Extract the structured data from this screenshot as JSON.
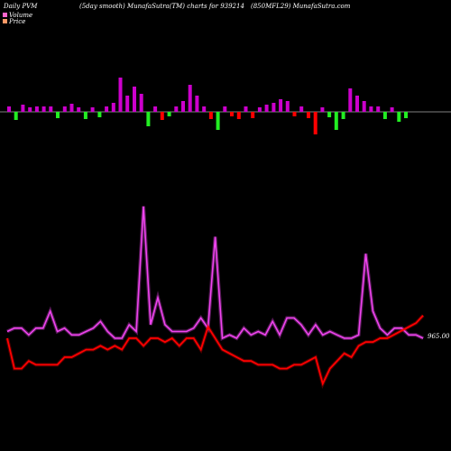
{
  "header": {
    "left": "Daily PVM",
    "middle": "(5day smooth) MunafaSutra(TM) charts for 939214",
    "right": "(850MFL29) MunafaSutra.com"
  },
  "legend": {
    "volume": {
      "label": "Volume",
      "color": "#ff66cc"
    },
    "price": {
      "label": "Price",
      "color": "#ff9966"
    }
  },
  "price_label": "965.00",
  "colors": {
    "background": "#000000",
    "bar_up": "#cc00cc",
    "bar_down_green": "#22ee22",
    "bar_down_red": "#ff0000",
    "volume_line": "#ee44ee",
    "price_line": "#ff0000",
    "baseline": "#aaaaaa"
  },
  "chart_data": {
    "type": "line",
    "sessions": 58,
    "volume_bars": [
      {
        "v": 6,
        "c": "up"
      },
      {
        "v": -9,
        "c": "green"
      },
      {
        "v": 8,
        "c": "up"
      },
      {
        "v": 5,
        "c": "up"
      },
      {
        "v": 6,
        "c": "up"
      },
      {
        "v": 6,
        "c": "up"
      },
      {
        "v": 6,
        "c": "up"
      },
      {
        "v": -7,
        "c": "green"
      },
      {
        "v": 6,
        "c": "up"
      },
      {
        "v": 9,
        "c": "up"
      },
      {
        "v": 5,
        "c": "up"
      },
      {
        "v": -8,
        "c": "green"
      },
      {
        "v": 5,
        "c": "up"
      },
      {
        "v": -6,
        "c": "green"
      },
      {
        "v": 6,
        "c": "up"
      },
      {
        "v": 10,
        "c": "up"
      },
      {
        "v": 38,
        "c": "up"
      },
      {
        "v": 18,
        "c": "up"
      },
      {
        "v": 28,
        "c": "up"
      },
      {
        "v": 20,
        "c": "up"
      },
      {
        "v": -16,
        "c": "green"
      },
      {
        "v": 6,
        "c": "up"
      },
      {
        "v": -9,
        "c": "red"
      },
      {
        "v": -5,
        "c": "green"
      },
      {
        "v": 6,
        "c": "up"
      },
      {
        "v": 12,
        "c": "up"
      },
      {
        "v": 30,
        "c": "up"
      },
      {
        "v": 18,
        "c": "up"
      },
      {
        "v": 6,
        "c": "up"
      },
      {
        "v": -8,
        "c": "red"
      },
      {
        "v": -20,
        "c": "green"
      },
      {
        "v": 6,
        "c": "up"
      },
      {
        "v": -5,
        "c": "red"
      },
      {
        "v": -8,
        "c": "red"
      },
      {
        "v": 6,
        "c": "up"
      },
      {
        "v": -7,
        "c": "red"
      },
      {
        "v": 5,
        "c": "up"
      },
      {
        "v": 8,
        "c": "up"
      },
      {
        "v": 10,
        "c": "up"
      },
      {
        "v": 14,
        "c": "up"
      },
      {
        "v": 12,
        "c": "up"
      },
      {
        "v": -5,
        "c": "red"
      },
      {
        "v": 6,
        "c": "up"
      },
      {
        "v": -7,
        "c": "red"
      },
      {
        "v": -25,
        "c": "red"
      },
      {
        "v": 5,
        "c": "up"
      },
      {
        "v": -6,
        "c": "green"
      },
      {
        "v": -20,
        "c": "green"
      },
      {
        "v": -8,
        "c": "green"
      },
      {
        "v": 26,
        "c": "up"
      },
      {
        "v": 18,
        "c": "up"
      },
      {
        "v": 12,
        "c": "up"
      },
      {
        "v": 6,
        "c": "up"
      },
      {
        "v": 6,
        "c": "up"
      },
      {
        "v": -8,
        "c": "green"
      },
      {
        "v": 5,
        "c": "up"
      },
      {
        "v": -11,
        "c": "green"
      },
      {
        "v": -7,
        "c": "green"
      }
    ],
    "volume_smooth": [
      2,
      3,
      3,
      1,
      3,
      3,
      8,
      2,
      3,
      1,
      1,
      2,
      3,
      5,
      2,
      0,
      0,
      4,
      2,
      39,
      4,
      12,
      4,
      2,
      2,
      2,
      3,
      6,
      3,
      30,
      0,
      1,
      0,
      3,
      1,
      2,
      1,
      5,
      1,
      6,
      6,
      4,
      1,
      4,
      1,
      2,
      1,
      0,
      0,
      1,
      25,
      8,
      3,
      1,
      3,
      3,
      1,
      1,
      0
    ],
    "price": [
      0,
      -8,
      -8,
      -6,
      -7,
      -7,
      -7,
      -7,
      -5,
      -5,
      -4,
      -3,
      -3,
      -2,
      -3,
      -2,
      -3,
      0,
      0,
      -2,
      0,
      0,
      -1,
      0,
      -2,
      0,
      0,
      -3,
      3,
      0,
      -3,
      -4,
      -5,
      -6,
      -6,
      -7,
      -7,
      -7,
      -8,
      -8,
      -7,
      -7,
      -6,
      -5,
      -12,
      -8,
      -6,
      -4,
      -5,
      -2,
      -1,
      -1,
      0,
      0,
      1,
      2,
      3,
      4,
      6
    ],
    "last_price": 965.0
  }
}
